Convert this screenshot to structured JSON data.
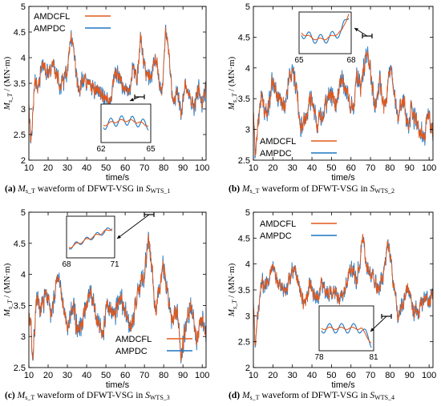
{
  "colors": {
    "amdcfl": "#E2581C",
    "ampdc": "#1F77C4",
    "axis": "#000000"
  },
  "chart_data": [
    {
      "type": "line",
      "panel": "a",
      "xlabel": "time/s",
      "ylabel_main": "M",
      "ylabel_sub": "s_T",
      "ylabel_tail": "/ (MN·m)",
      "xlim": [
        10,
        102
      ],
      "ylim": [
        2,
        5
      ],
      "xticks": [
        "10",
        "20",
        "30",
        "40",
        "50",
        "60",
        "70",
        "80",
        "90",
        "100"
      ],
      "yticks": [
        "2",
        "2.5",
        "3",
        "3.5",
        "4",
        "4.5",
        "5"
      ],
      "legend": [
        "AMDCFL",
        "AMPDC"
      ],
      "legend_loc": "top-left",
      "series": [
        {
          "name": "AMDCFL",
          "color": "#E2581C",
          "keypoints": [
            [
              10,
              3.2
            ],
            [
              11,
              2.35
            ],
            [
              12,
              2.9
            ],
            [
              13,
              3.5
            ],
            [
              15,
              3.4
            ],
            [
              17,
              3.9
            ],
            [
              20,
              3.6
            ],
            [
              23,
              3.9
            ],
            [
              26,
              3.4
            ],
            [
              30,
              3.7
            ],
            [
              32,
              4.4
            ],
            [
              34,
              3.8
            ],
            [
              36,
              3.3
            ],
            [
              38,
              3.6
            ],
            [
              40,
              3.5
            ],
            [
              44,
              3.4
            ],
            [
              48,
              3.3
            ],
            [
              52,
              3.1
            ],
            [
              55,
              3.7
            ],
            [
              58,
              3.5
            ],
            [
              62,
              3.3
            ],
            [
              64,
              3.8
            ],
            [
              66,
              3.5
            ],
            [
              68,
              4.4
            ],
            [
              70,
              3.8
            ],
            [
              73,
              3.6
            ],
            [
              76,
              4.0
            ],
            [
              79,
              3.2
            ],
            [
              81,
              4.5
            ],
            [
              83,
              4.0
            ],
            [
              85,
              3.0
            ],
            [
              87,
              3.4
            ],
            [
              89,
              2.8
            ],
            [
              91,
              3.5
            ],
            [
              94,
              3.2
            ],
            [
              96,
              3.0
            ],
            [
              98,
              3.4
            ],
            [
              100,
              3.1
            ],
            [
              102,
              3.4
            ]
          ]
        }
      ],
      "inset": {
        "x_start": "62",
        "x_end": "65"
      }
    },
    {
      "type": "line",
      "panel": "b",
      "xlabel": "time/s",
      "ylabel_main": "M",
      "ylabel_sub": "s_T",
      "ylabel_tail": "/ (MN·m)",
      "xlim": [
        10,
        102
      ],
      "ylim": [
        2.5,
        5
      ],
      "xticks": [
        "10",
        "20",
        "30",
        "40",
        "50",
        "60",
        "70",
        "80",
        "90",
        "100"
      ],
      "yticks": [
        "2.5",
        "3",
        "3.5",
        "4",
        "4.5",
        "5"
      ],
      "legend": [
        "AMDCFL",
        "AMPDC"
      ],
      "legend_loc": "bottom-left",
      "series": [
        {
          "name": "AMDCFL",
          "color": "#E2581C",
          "keypoints": [
            [
              10,
              3.3
            ],
            [
              11,
              2.6
            ],
            [
              12,
              3.0
            ],
            [
              14,
              3.5
            ],
            [
              17,
              3.3
            ],
            [
              20,
              3.8
            ],
            [
              23,
              3.5
            ],
            [
              26,
              3.4
            ],
            [
              29,
              3.9
            ],
            [
              32,
              3.7
            ],
            [
              34,
              3.0
            ],
            [
              37,
              3.2
            ],
            [
              40,
              3.5
            ],
            [
              43,
              3.1
            ],
            [
              46,
              3.3
            ],
            [
              49,
              3.6
            ],
            [
              52,
              3.4
            ],
            [
              55,
              3.8
            ],
            [
              58,
              3.6
            ],
            [
              61,
              3.3
            ],
            [
              63,
              3.9
            ],
            [
              65,
              3.6
            ],
            [
              68,
              4.3
            ],
            [
              70,
              4.0
            ],
            [
              72,
              3.4
            ],
            [
              75,
              3.7
            ],
            [
              77,
              3.3
            ],
            [
              80,
              4.0
            ],
            [
              82,
              3.7
            ],
            [
              84,
              3.2
            ],
            [
              87,
              3.5
            ],
            [
              89,
              3.0
            ],
            [
              91,
              3.3
            ],
            [
              94,
              3.1
            ],
            [
              97,
              2.9
            ],
            [
              100,
              3.2
            ],
            [
              102,
              3.0
            ]
          ]
        }
      ],
      "inset": {
        "x_start": "65",
        "x_end": "68"
      }
    },
    {
      "type": "line",
      "panel": "c",
      "xlabel": "time/s",
      "ylabel_main": "M",
      "ylabel_sub": "s_T",
      "ylabel_tail": "/ (MN·m)",
      "xlim": [
        10,
        102
      ],
      "ylim": [
        2.5,
        5
      ],
      "xticks": [
        "10",
        "20",
        "30",
        "40",
        "50",
        "60",
        "70",
        "80",
        "90",
        "100"
      ],
      "yticks": [
        "2.5",
        "3",
        "3.5",
        "4",
        "4.5",
        "5"
      ],
      "legend": [
        "AMDCFL",
        "AMPDC"
      ],
      "legend_loc": "bottom-right",
      "series": [
        {
          "name": "AMDCFL",
          "color": "#E2581C",
          "keypoints": [
            [
              10,
              3.4
            ],
            [
              11,
              3.2
            ],
            [
              12,
              2.7
            ],
            [
              14,
              3.6
            ],
            [
              16,
              3.4
            ],
            [
              19,
              3.7
            ],
            [
              22,
              3.3
            ],
            [
              24,
              3.9
            ],
            [
              27,
              3.6
            ],
            [
              30,
              3.2
            ],
            [
              33,
              3.5
            ],
            [
              36,
              3.0
            ],
            [
              39,
              3.4
            ],
            [
              42,
              3.7
            ],
            [
              45,
              3.3
            ],
            [
              48,
              3.0
            ],
            [
              51,
              3.5
            ],
            [
              54,
              3.3
            ],
            [
              57,
              3.6
            ],
            [
              60,
              3.4
            ],
            [
              63,
              3.1
            ],
            [
              66,
              3.6
            ],
            [
              70,
              4.0
            ],
            [
              72,
              4.6
            ],
            [
              74,
              4.1
            ],
            [
              76,
              3.4
            ],
            [
              78,
              3.8
            ],
            [
              80,
              4.1
            ],
            [
              82,
              3.7
            ],
            [
              85,
              3.2
            ],
            [
              87,
              3.5
            ],
            [
              89,
              2.7
            ],
            [
              92,
              3.3
            ],
            [
              94,
              3.5
            ],
            [
              97,
              3.0
            ],
            [
              100,
              3.3
            ],
            [
              102,
              3.0
            ]
          ]
        }
      ],
      "inset": {
        "x_start": "68",
        "x_end": "71"
      }
    },
    {
      "type": "line",
      "panel": "d",
      "xlabel": "time/s",
      "ylabel_main": "M",
      "ylabel_sub": "s_T",
      "ylabel_tail": "/ (MN·m)",
      "xlim": [
        10,
        102
      ],
      "ylim": [
        2,
        5
      ],
      "xticks": [
        "10",
        "20",
        "30",
        "40",
        "50",
        "60",
        "70",
        "80",
        "90",
        "100"
      ],
      "yticks": [
        "2",
        "2.5",
        "3",
        "3.5",
        "4",
        "4.5",
        "5"
      ],
      "legend": [
        "AMDCFL",
        "AMPDC"
      ],
      "legend_loc": "top-right",
      "series": [
        {
          "name": "AMDCFL",
          "color": "#E2581C",
          "keypoints": [
            [
              10,
              3.3
            ],
            [
              11,
              2.3
            ],
            [
              12,
              3.0
            ],
            [
              14,
              3.6
            ],
            [
              17,
              3.7
            ],
            [
              20,
              3.9
            ],
            [
              23,
              3.6
            ],
            [
              26,
              3.5
            ],
            [
              29,
              3.7
            ],
            [
              31,
              4.0
            ],
            [
              33,
              3.6
            ],
            [
              36,
              3.2
            ],
            [
              39,
              3.6
            ],
            [
              42,
              3.3
            ],
            [
              45,
              3.6
            ],
            [
              48,
              3.4
            ],
            [
              51,
              3.5
            ],
            [
              54,
              3.3
            ],
            [
              57,
              3.5
            ],
            [
              60,
              3.9
            ],
            [
              63,
              3.7
            ],
            [
              66,
              4.5
            ],
            [
              68,
              4.0
            ],
            [
              71,
              3.7
            ],
            [
              74,
              3.5
            ],
            [
              77,
              3.8
            ],
            [
              79,
              4.4
            ],
            [
              82,
              3.6
            ],
            [
              84,
              3.0
            ],
            [
              87,
              3.3
            ],
            [
              89,
              3.6
            ],
            [
              91,
              3.2
            ],
            [
              94,
              3.0
            ],
            [
              97,
              3.3
            ],
            [
              100,
              3.2
            ],
            [
              102,
              3.4
            ]
          ]
        }
      ],
      "inset": {
        "x_start": "78",
        "x_end": "81"
      }
    }
  ],
  "captions": [
    {
      "label": "(a)",
      "text_pre": " waveform of DFWT-VSG in ",
      "sym": "S",
      "sub": "WTS_1"
    },
    {
      "label": "(b)",
      "text_pre": " waveform of DFWT-VSG in ",
      "sym": "S",
      "sub": "WTS_2"
    },
    {
      "label": "(c)",
      "text_pre": " waveform of DFWT-VSG in ",
      "sym": "S",
      "sub": "WTS_3"
    },
    {
      "label": "(d)",
      "text_pre": " waveform of DFWT-VSG in ",
      "sym": "S",
      "sub": "WTS_4"
    }
  ],
  "caption_symbol": {
    "main": "M",
    "sub": "s_T"
  }
}
